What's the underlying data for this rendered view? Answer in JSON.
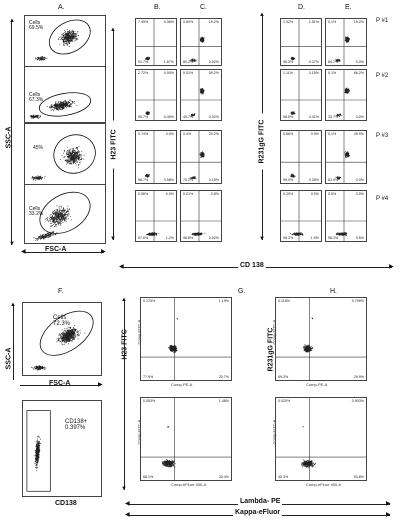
{
  "section_labels": {
    "A": "A.",
    "B": "B.",
    "C": "C.",
    "D": "D.",
    "E": "E.",
    "F": "F.",
    "G": "G.",
    "H": "H."
  },
  "axis": {
    "ssc_a": "SSC-A",
    "fsc_a": "FSC-A",
    "h23_fitc": "H23 FITC",
    "r231_fitc": "R231gG FITC",
    "cd138": "CD 138",
    "ssc_a_f": "SSC-A",
    "fsc_a_f": "FSC-A",
    "cd138_f": "CD138",
    "lambda_pe": "Lambda- PE",
    "kappa_ef": "Kappa-eFluor",
    "h23_fitc_g": "H23 FITC",
    "r231_fitc_h": "R231gG FITC"
  },
  "patients": [
    "P #1",
    "P #2",
    "P #3",
    "P #4"
  ],
  "a_panels": [
    {
      "gate_label": "Cells\n69.5%"
    },
    {
      "gate_label": "Cells\n67.3%"
    },
    {
      "gate_label": "45%"
    },
    {
      "gate_label": "Cells\n33.2%"
    }
  ],
  "quad_B": [
    [
      "7.45%",
      "0.36%",
      "91.7%",
      "1.67%"
    ],
    [
      "2.72%",
      "0.90%",
      "95.7%",
      "0.40%"
    ],
    [
      "0.74%",
      "0.0%",
      "98.7%",
      "0.58%"
    ],
    [
      "0.56%",
      "0.0%",
      "97.6%",
      "1.2%"
    ]
  ],
  "quad_C": [
    [
      "0.60%",
      "19.2%",
      "80.2%",
      "0.02%"
    ],
    [
      "0.01%",
      "59.2%",
      "40.7%",
      "0.02%"
    ],
    [
      "0.4%",
      "29.2%",
      "70.2%",
      "0.15%"
    ],
    [
      "0.01%",
      "0.8%",
      "96.8%",
      "0.02%"
    ]
  ],
  "quad_D": [
    [
      "1.92%",
      "2.51%",
      "95.3%",
      "0.37%"
    ],
    [
      "1.11%",
      "0.15%",
      "98.5%",
      "0.41%"
    ],
    [
      "0.66%",
      "0.0%",
      "99.0%",
      "0.35%"
    ],
    [
      "0.20%",
      "0.0%",
      "98.2%",
      "1.5%"
    ]
  ],
  "quad_E": [
    [
      "0.1%",
      "15.2%",
      "84.7%",
      "0.0%"
    ],
    [
      "0.1%",
      "66.2%",
      "33.7%",
      "0.0%"
    ],
    [
      "0.1%",
      "35.9%",
      "63.9%",
      "0.0%"
    ],
    [
      "0.5%",
      "0.5%",
      "98.3%",
      "0.6%"
    ]
  ],
  "f_top": {
    "gate_label": "Cells\n72.3%"
  },
  "f_bottom": {
    "gate_label": "CD138+\n0.397%"
  },
  "quad_G": [
    {
      "ul": "0.175%",
      "ur": "1.19%",
      "ll": "77.9%",
      "lr": "20.7%",
      "xaxis": "Comp-PE-A",
      "yaxis": "Comp-FITC-A"
    },
    {
      "ul": "0.053%",
      "ur": "1.48%",
      "ll": "68.1%",
      "lr": "30.4%",
      "xaxis": "Comp-eFluor 450-A",
      "yaxis": "Comp-FITC-A"
    }
  ],
  "quad_H": [
    {
      "ul": "0.116%",
      "ur": "0.799%",
      "ll": "69.2%",
      "lr": "29.9%",
      "xaxis": "Comp-PE-A",
      "yaxis": "Comp-FITC-A"
    },
    {
      "ul": "0.020%",
      "ur": "0.903%",
      "ll": "45.3%",
      "lr": "53.8%",
      "xaxis": "Comp-eFluor 450-A",
      "yaxis": "Comp-FITC-A"
    }
  ]
}
